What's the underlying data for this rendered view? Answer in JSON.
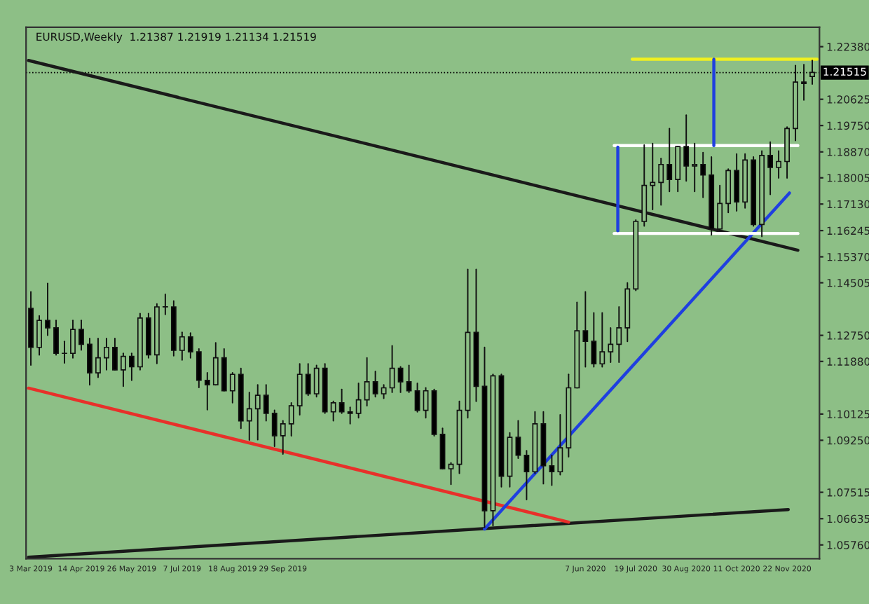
{
  "chart_data": {
    "type": "candlestick",
    "annotations": [
      "EURUSD,Weekly  1.21387 1.21919 1.21134 1.21519"
    ],
    "x": [
      "2019-03-03",
      "2019-03-10",
      "2019-03-17",
      "2019-03-24",
      "2019-03-31",
      "2019-04-07",
      "2019-04-14",
      "2019-04-21",
      "2019-04-28",
      "2019-05-05",
      "2019-05-12",
      "2019-05-19",
      "2019-05-26",
      "2019-06-02",
      "2019-06-09",
      "2019-06-16",
      "2019-06-23",
      "2019-06-30",
      "2019-07-07",
      "2019-07-14",
      "2019-07-21",
      "2019-07-28",
      "2019-08-04",
      "2019-08-11",
      "2019-08-18",
      "2019-08-25",
      "2019-09-01",
      "2019-09-08",
      "2019-09-15",
      "2019-09-22",
      "2019-09-29",
      "2019-10-06",
      "2019-10-13",
      "2019-10-20",
      "2019-10-27",
      "2019-11-03",
      "2019-11-10",
      "2019-11-17",
      "2019-11-24",
      "2019-12-01",
      "2019-12-08",
      "2019-12-15",
      "2019-12-22",
      "2019-12-29",
      "2020-01-05",
      "2020-01-12",
      "2020-01-19",
      "2020-01-26",
      "2020-02-02",
      "2020-02-09",
      "2020-02-16",
      "2020-02-23",
      "2020-03-01",
      "2020-03-08",
      "2020-03-15",
      "2020-03-22",
      "2020-03-29",
      "2020-04-05",
      "2020-04-12",
      "2020-04-19",
      "2020-04-26",
      "2020-05-03",
      "2020-05-10",
      "2020-05-17",
      "2020-05-24",
      "2020-05-31",
      "2020-06-07",
      "2020-06-14",
      "2020-06-21",
      "2020-06-28",
      "2020-07-05",
      "2020-07-12",
      "2020-07-19",
      "2020-07-26",
      "2020-08-02",
      "2020-08-09",
      "2020-08-16",
      "2020-08-23",
      "2020-08-30",
      "2020-09-06",
      "2020-09-13",
      "2020-09-20",
      "2020-09-27",
      "2020-10-04",
      "2020-10-11",
      "2020-10-18",
      "2020-10-25",
      "2020-11-01",
      "2020-11-08",
      "2020-11-15",
      "2020-11-22",
      "2020-11-29",
      "2020-12-06",
      "2020-12-13"
    ],
    "ohlc": [
      [
        1.1365,
        1.142,
        1.1176,
        1.1235
      ],
      [
        1.1235,
        1.134,
        1.121,
        1.1325
      ],
      [
        1.1325,
        1.1448,
        1.1275,
        1.13
      ],
      [
        1.13,
        1.1325,
        1.121,
        1.1215
      ],
      [
        1.1215,
        1.1255,
        1.1183,
        1.1215
      ],
      [
        1.1215,
        1.1325,
        1.12,
        1.1295
      ],
      [
        1.1295,
        1.1325,
        1.1226,
        1.1245
      ],
      [
        1.1245,
        1.1265,
        1.111,
        1.115
      ],
      [
        1.115,
        1.1265,
        1.1135,
        1.12
      ],
      [
        1.12,
        1.1265,
        1.116,
        1.1235
      ],
      [
        1.1235,
        1.1265,
        1.116,
        1.116
      ],
      [
        1.116,
        1.1215,
        1.1105,
        1.1205
      ],
      [
        1.1205,
        1.1215,
        1.1125,
        1.117
      ],
      [
        1.117,
        1.1348,
        1.116,
        1.1333
      ],
      [
        1.1333,
        1.1348,
        1.12,
        1.121
      ],
      [
        1.121,
        1.138,
        1.1181,
        1.137
      ],
      [
        1.137,
        1.1412,
        1.1345,
        1.137
      ],
      [
        1.137,
        1.139,
        1.1207,
        1.1225
      ],
      [
        1.1225,
        1.1285,
        1.1193,
        1.127
      ],
      [
        1.127,
        1.1283,
        1.12,
        1.122
      ],
      [
        1.122,
        1.123,
        1.1101,
        1.1125
      ],
      [
        1.1125,
        1.115,
        1.1027,
        1.111
      ],
      [
        1.111,
        1.125,
        1.111,
        1.12
      ],
      [
        1.12,
        1.123,
        1.109,
        1.109
      ],
      [
        1.109,
        1.115,
        1.105,
        1.1145
      ],
      [
        1.1145,
        1.1165,
        1.0965,
        1.099
      ],
      [
        1.099,
        1.1085,
        1.0926,
        1.103
      ],
      [
        1.103,
        1.111,
        1.0927,
        1.1075
      ],
      [
        1.1075,
        1.111,
        1.099,
        1.1015
      ],
      [
        1.1015,
        1.1025,
        1.0905,
        1.094
      ],
      [
        1.094,
        1.099,
        1.0879,
        1.098
      ],
      [
        1.098,
        1.105,
        1.094,
        1.104
      ],
      [
        1.104,
        1.118,
        1.101,
        1.1145
      ],
      [
        1.1145,
        1.118,
        1.1075,
        1.108
      ],
      [
        1.108,
        1.1175,
        1.107,
        1.1165
      ],
      [
        1.1165,
        1.118,
        1.1015,
        1.102
      ],
      [
        1.102,
        1.1055,
        1.099,
        1.105
      ],
      [
        1.105,
        1.1095,
        1.1015,
        1.102
      ],
      [
        1.102,
        1.1035,
        1.098,
        1.1015
      ],
      [
        1.1015,
        1.1115,
        1.1,
        1.106
      ],
      [
        1.106,
        1.12,
        1.104,
        1.112
      ],
      [
        1.112,
        1.1155,
        1.107,
        1.108
      ],
      [
        1.108,
        1.111,
        1.1065,
        1.11
      ],
      [
        1.11,
        1.124,
        1.1085,
        1.1165
      ],
      [
        1.1165,
        1.117,
        1.1085,
        1.112
      ],
      [
        1.112,
        1.1175,
        1.1085,
        1.109
      ],
      [
        1.109,
        1.1115,
        1.102,
        1.1025
      ],
      [
        1.1025,
        1.11,
        1.1,
        1.109
      ],
      [
        1.109,
        1.1095,
        1.094,
        1.0945
      ],
      [
        1.0945,
        1.0965,
        1.083,
        1.083
      ],
      [
        1.083,
        1.085,
        1.0778,
        1.0845
      ],
      [
        1.0845,
        1.1055,
        1.0815,
        1.1025
      ],
      [
        1.1025,
        1.1495,
        1.1,
        1.1285
      ],
      [
        1.1285,
        1.1495,
        1.1055,
        1.1105
      ],
      [
        1.1105,
        1.1235,
        1.0635,
        1.069
      ],
      [
        1.069,
        1.1145,
        1.064,
        1.114
      ],
      [
        1.114,
        1.1145,
        1.077,
        1.0805
      ],
      [
        1.0805,
        1.095,
        1.077,
        1.0935
      ],
      [
        1.0935,
        1.099,
        1.0865,
        1.0875
      ],
      [
        1.0875,
        1.089,
        1.0727,
        1.082
      ],
      [
        1.082,
        1.102,
        1.0815,
        1.098
      ],
      [
        1.098,
        1.102,
        1.078,
        1.084
      ],
      [
        1.084,
        1.0875,
        1.0775,
        1.082
      ],
      [
        1.082,
        1.101,
        1.081,
        1.09
      ],
      [
        1.09,
        1.1145,
        1.087,
        1.11
      ],
      [
        1.11,
        1.1385,
        1.11,
        1.129
      ],
      [
        1.129,
        1.142,
        1.117,
        1.1255
      ],
      [
        1.1255,
        1.135,
        1.117,
        1.118
      ],
      [
        1.118,
        1.135,
        1.117,
        1.122
      ],
      [
        1.122,
        1.13,
        1.1185,
        1.1245
      ],
      [
        1.1245,
        1.137,
        1.1185,
        1.13
      ],
      [
        1.13,
        1.145,
        1.1255,
        1.143
      ],
      [
        1.143,
        1.166,
        1.1425,
        1.1655
      ],
      [
        1.1655,
        1.191,
        1.164,
        1.1775
      ],
      [
        1.1775,
        1.1915,
        1.1695,
        1.1785
      ],
      [
        1.1785,
        1.1865,
        1.171,
        1.1845
      ],
      [
        1.1845,
        1.1965,
        1.1755,
        1.1795
      ],
      [
        1.1795,
        1.1905,
        1.1755,
        1.1905
      ],
      [
        1.1905,
        1.201,
        1.179,
        1.184
      ],
      [
        1.184,
        1.1915,
        1.1755,
        1.1845
      ],
      [
        1.1845,
        1.1885,
        1.1735,
        1.181
      ],
      [
        1.181,
        1.187,
        1.161,
        1.163
      ],
      [
        1.163,
        1.1775,
        1.1625,
        1.1715
      ],
      [
        1.1715,
        1.183,
        1.1685,
        1.1825
      ],
      [
        1.1825,
        1.188,
        1.169,
        1.172
      ],
      [
        1.172,
        1.188,
        1.17,
        1.186
      ],
      [
        1.186,
        1.187,
        1.164,
        1.1645
      ],
      [
        1.1645,
        1.189,
        1.1605,
        1.1875
      ],
      [
        1.1875,
        1.192,
        1.1745,
        1.1835
      ],
      [
        1.1835,
        1.189,
        1.18,
        1.1855
      ],
      [
        1.1855,
        1.197,
        1.18,
        1.1965
      ],
      [
        1.1965,
        1.2175,
        1.1925,
        1.212
      ],
      [
        1.212,
        1.2178,
        1.206,
        1.2115
      ],
      [
        1.21387,
        1.21919,
        1.21134,
        1.21519
      ]
    ],
    "series": [
      {
        "type": "line",
        "color": "#1a1a1a",
        "x": [
          "2019-03-01",
          "2020-12-01"
        ],
        "values": [
          1.2192,
          1.1559
        ]
      },
      {
        "type": "line",
        "color": "#1a1a1a",
        "x": [
          "2019-03-01",
          "2020-11-23"
        ],
        "values": [
          1.0535,
          1.0694
        ]
      },
      {
        "type": "line",
        "color": "#e8302a",
        "x": [
          "2019-03-01",
          "2020-05-24"
        ],
        "values": [
          1.1099,
          1.0652
        ]
      },
      {
        "type": "line",
        "color": "#1f3fe0",
        "x": [
          "2020-03-15",
          "2020-11-24"
        ],
        "values": [
          1.0629,
          1.175
        ]
      },
      {
        "type": "line",
        "color": "#f0f020",
        "x": [
          "2020-07-16",
          "2020-12-17"
        ],
        "values": [
          1.2196,
          1.2196
        ]
      },
      {
        "type": "line",
        "color": "#ffffff",
        "x": [
          "2020-07-01",
          "2020-12-01"
        ],
        "values": [
          1.1908,
          1.1908
        ]
      },
      {
        "type": "line",
        "color": "#ffffff",
        "x": [
          "2020-07-01",
          "2020-12-01"
        ],
        "values": [
          1.1615,
          1.1615
        ]
      },
      {
        "type": "line",
        "color": "#1f3fe0",
        "x": [
          "2020-07-04",
          "2020-07-04"
        ],
        "values": [
          1.1903,
          1.1624
        ]
      },
      {
        "type": "line",
        "color": "#1f3fe0",
        "x": [
          "2020-09-22",
          "2020-09-22"
        ],
        "values": [
          1.2196,
          1.1908
        ]
      }
    ],
    "ref_lines": [
      {
        "axis": "y",
        "value": 1.21515,
        "label": "1.21515",
        "color": "#000000"
      }
    ],
    "xlim": [
      "2019-02-27",
      "2020-12-19"
    ],
    "xticks": [
      {
        "value": "2019-03-03",
        "label": "3 Mar 2019"
      },
      {
        "value": "2019-04-14",
        "label": "14 Apr 2019"
      },
      {
        "value": "2019-05-26",
        "label": "26 May 2019"
      },
      {
        "value": "2019-07-07",
        "label": "7 Jul 2019"
      },
      {
        "value": "2019-08-18",
        "label": "18 Aug 2019"
      },
      {
        "value": "2019-09-29",
        "label": "29 Sep 2019"
      },
      {
        "value": "2020-06-07",
        "label": "7 Jun 2020"
      },
      {
        "value": "2020-07-19",
        "label": "19 Jul 2020"
      },
      {
        "value": "2020-08-30",
        "label": "30 Aug 2020"
      },
      {
        "value": "2020-10-11",
        "label": "11 Oct 2020"
      },
      {
        "value": "2020-11-22",
        "label": "22 Nov 2020"
      }
    ],
    "ylim": [
      1.053,
      1.2303
    ],
    "yticks": [
      {
        "value": 1.2238,
        "label": "1.22380"
      },
      {
        "value": 1.20625,
        "label": "1.20625"
      },
      {
        "value": 1.1975,
        "label": "1.19750"
      },
      {
        "value": 1.1887,
        "label": "1.18870"
      },
      {
        "value": 1.18005,
        "label": "1.18005"
      },
      {
        "value": 1.1713,
        "label": "1.17130"
      },
      {
        "value": 1.16245,
        "label": "1.16245"
      },
      {
        "value": 1.1537,
        "label": "1.15370"
      },
      {
        "value": 1.14505,
        "label": "1.14505"
      },
      {
        "value": 1.1275,
        "label": "1.12750"
      },
      {
        "value": 1.1188,
        "label": "1.11880"
      },
      {
        "value": 1.10125,
        "label": "1.10125"
      },
      {
        "value": 1.0925,
        "label": "1.09250"
      },
      {
        "value": 1.07515,
        "label": "1.07515"
      },
      {
        "value": 1.06635,
        "label": "1.06635"
      },
      {
        "value": 1.0576,
        "label": "1.05760"
      }
    ],
    "grid": false
  }
}
